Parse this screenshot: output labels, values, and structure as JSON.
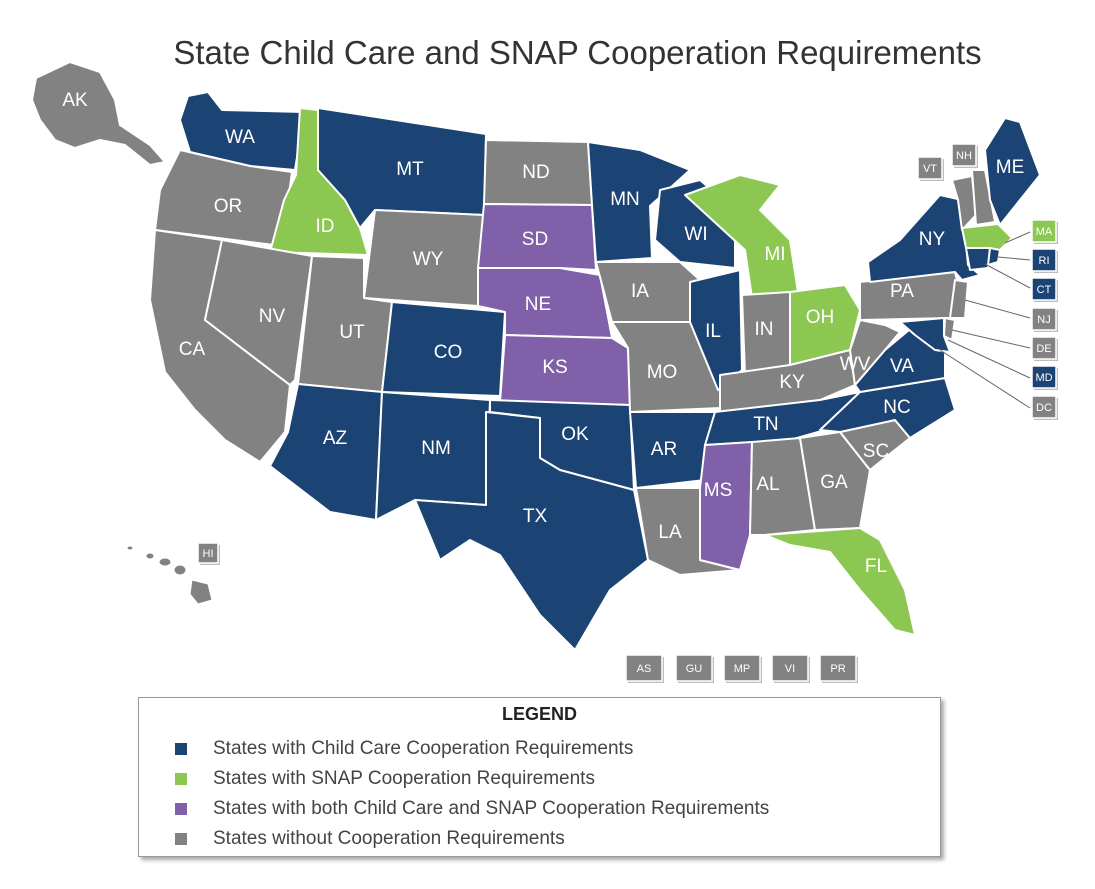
{
  "title": "State Child Care and SNAP Cooperation Requirements",
  "colors": {
    "child_care": "#1b4373",
    "snap": "#8cc751",
    "both": "#8060a8",
    "none": "#828282"
  },
  "states": {
    "AK": {
      "label": "AK",
      "category": "none"
    },
    "HI": {
      "label": "HI",
      "category": "none"
    },
    "WA": {
      "label": "WA",
      "category": "child_care"
    },
    "OR": {
      "label": "OR",
      "category": "none"
    },
    "CA": {
      "label": "CA",
      "category": "none"
    },
    "ID": {
      "label": "ID",
      "category": "snap"
    },
    "NV": {
      "label": "NV",
      "category": "none"
    },
    "MT": {
      "label": "MT",
      "category": "child_care"
    },
    "WY": {
      "label": "WY",
      "category": "none"
    },
    "UT": {
      "label": "UT",
      "category": "none"
    },
    "AZ": {
      "label": "AZ",
      "category": "child_care"
    },
    "CO": {
      "label": "CO",
      "category": "child_care"
    },
    "NM": {
      "label": "NM",
      "category": "child_care"
    },
    "ND": {
      "label": "ND",
      "category": "none"
    },
    "SD": {
      "label": "SD",
      "category": "both"
    },
    "NE": {
      "label": "NE",
      "category": "both"
    },
    "KS": {
      "label": "KS",
      "category": "both"
    },
    "OK": {
      "label": "OK",
      "category": "child_care"
    },
    "TX": {
      "label": "TX",
      "category": "child_care"
    },
    "MN": {
      "label": "MN",
      "category": "child_care"
    },
    "IA": {
      "label": "IA",
      "category": "none"
    },
    "MO": {
      "label": "MO",
      "category": "none"
    },
    "AR": {
      "label": "AR",
      "category": "child_care"
    },
    "LA": {
      "label": "LA",
      "category": "none"
    },
    "WI": {
      "label": "WI",
      "category": "child_care"
    },
    "IL": {
      "label": "IL",
      "category": "child_care"
    },
    "MI": {
      "label": "MI",
      "category": "snap"
    },
    "IN": {
      "label": "IN",
      "category": "none"
    },
    "OH": {
      "label": "OH",
      "category": "snap"
    },
    "KY": {
      "label": "KY",
      "category": "none"
    },
    "TN": {
      "label": "TN",
      "category": "child_care"
    },
    "MS": {
      "label": "MS",
      "category": "both"
    },
    "AL": {
      "label": "AL",
      "category": "none"
    },
    "GA": {
      "label": "GA",
      "category": "none"
    },
    "FL": {
      "label": "FL",
      "category": "snap"
    },
    "SC": {
      "label": "SC",
      "category": "none"
    },
    "NC": {
      "label": "NC",
      "category": "child_care"
    },
    "VA": {
      "label": "VA",
      "category": "child_care"
    },
    "WV": {
      "label": "WV",
      "category": "none"
    },
    "PA": {
      "label": "PA",
      "category": "none"
    },
    "NY": {
      "label": "NY",
      "category": "child_care"
    },
    "VT": {
      "label": "VT",
      "category": "none"
    },
    "NH": {
      "label": "NH",
      "category": "none"
    },
    "ME": {
      "label": "ME",
      "category": "child_care"
    },
    "MA": {
      "label": "MA",
      "category": "snap"
    },
    "RI": {
      "label": "RI",
      "category": "child_care"
    },
    "CT": {
      "label": "CT",
      "category": "child_care"
    },
    "NJ": {
      "label": "NJ",
      "category": "none"
    },
    "DE": {
      "label": "DE",
      "category": "none"
    },
    "MD": {
      "label": "MD",
      "category": "child_care"
    },
    "DC": {
      "label": "DC",
      "category": "none"
    }
  },
  "territories": [
    {
      "label": "AS",
      "category": "none"
    },
    {
      "label": "GU",
      "category": "none"
    },
    {
      "label": "MP",
      "category": "none"
    },
    {
      "label": "VI",
      "category": "none"
    },
    {
      "label": "PR",
      "category": "none"
    }
  ],
  "legend": {
    "title": "LEGEND",
    "items": [
      {
        "label": "States with Child Care Cooperation Requirements",
        "category": "child_care"
      },
      {
        "label": "States with SNAP Cooperation Requirements",
        "category": "snap"
      },
      {
        "label": "States with both Child Care and SNAP Cooperation Requirements",
        "category": "both"
      },
      {
        "label": "States without Cooperation Requirements",
        "category": "none"
      }
    ]
  }
}
